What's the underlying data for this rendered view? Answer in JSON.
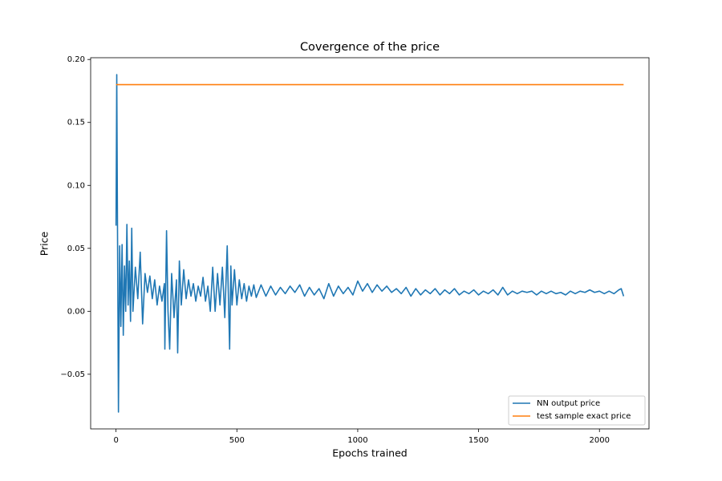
{
  "chart_data": {
    "type": "line",
    "title": "Covergence of the price",
    "xlabel": "Epochs trained",
    "ylabel": "Price",
    "xlim": [
      -105,
      2205
    ],
    "ylim": [
      -0.0934,
      0.2014
    ],
    "xticks": [
      0,
      500,
      1000,
      1500,
      2000
    ],
    "yticks": [
      {
        "value": -0.05,
        "label": "−0.05"
      },
      {
        "value": 0,
        "label": "0.00"
      },
      {
        "value": 0.05,
        "label": "0.05"
      },
      {
        "value": 0.1,
        "label": "0.10"
      },
      {
        "value": 0.15,
        "label": "0.15"
      },
      {
        "value": 0.2,
        "label": "0.20"
      }
    ],
    "legend": "lower right",
    "series": [
      {
        "name": "NN output price",
        "color": "#1f77b4",
        "x": [
          0,
          3,
          6,
          10,
          15,
          20,
          25,
          30,
          35,
          40,
          45,
          50,
          55,
          60,
          65,
          70,
          80,
          90,
          100,
          110,
          120,
          130,
          140,
          150,
          160,
          170,
          180,
          190,
          200,
          202,
          209,
          215,
          222,
          230,
          240,
          250,
          255,
          262,
          270,
          280,
          290,
          300,
          310,
          320,
          330,
          340,
          350,
          360,
          370,
          380,
          390,
          400,
          410,
          420,
          430,
          440,
          450,
          460,
          470,
          475,
          480,
          490,
          500,
          510,
          520,
          530,
          540,
          550,
          560,
          570,
          580,
          600,
          620,
          640,
          660,
          680,
          700,
          720,
          740,
          760,
          780,
          800,
          820,
          840,
          860,
          880,
          900,
          920,
          940,
          960,
          980,
          1000,
          1020,
          1040,
          1060,
          1080,
          1100,
          1120,
          1140,
          1160,
          1180,
          1200,
          1220,
          1240,
          1260,
          1280,
          1300,
          1320,
          1340,
          1360,
          1380,
          1400,
          1420,
          1440,
          1460,
          1480,
          1500,
          1520,
          1540,
          1560,
          1580,
          1600,
          1620,
          1640,
          1660,
          1680,
          1700,
          1720,
          1740,
          1760,
          1780,
          1800,
          1820,
          1840,
          1860,
          1880,
          1900,
          1920,
          1940,
          1960,
          1980,
          2000,
          2020,
          2040,
          2060,
          2080,
          2090,
          2100
        ],
        "values": [
          0.068,
          0.188,
          0.07,
          -0.08,
          0.052,
          -0.012,
          0.053,
          -0.019,
          0.036,
          0.0,
          0.069,
          0.005,
          0.04,
          -0.008,
          0.066,
          0.0,
          0.035,
          0.01,
          0.047,
          -0.01,
          0.03,
          0.015,
          0.028,
          0.01,
          0.025,
          0.005,
          0.02,
          0.008,
          0.022,
          -0.03,
          0.064,
          0.0,
          -0.03,
          0.03,
          -0.005,
          0.025,
          -0.033,
          0.04,
          0.005,
          0.033,
          0.01,
          0.025,
          0.012,
          0.022,
          0.008,
          0.02,
          0.012,
          0.027,
          0.008,
          0.02,
          0.0,
          0.035,
          0.0,
          0.03,
          0.005,
          0.035,
          -0.005,
          0.052,
          -0.03,
          0.036,
          0.005,
          0.033,
          0.005,
          0.025,
          0.01,
          0.022,
          0.008,
          0.02,
          0.012,
          0.021,
          0.011,
          0.021,
          0.012,
          0.02,
          0.013,
          0.019,
          0.014,
          0.02,
          0.015,
          0.021,
          0.012,
          0.019,
          0.013,
          0.018,
          0.01,
          0.022,
          0.012,
          0.02,
          0.014,
          0.019,
          0.013,
          0.024,
          0.016,
          0.022,
          0.015,
          0.021,
          0.016,
          0.02,
          0.015,
          0.018,
          0.014,
          0.019,
          0.012,
          0.018,
          0.013,
          0.017,
          0.014,
          0.018,
          0.013,
          0.017,
          0.014,
          0.018,
          0.013,
          0.016,
          0.014,
          0.017,
          0.013,
          0.016,
          0.014,
          0.017,
          0.013,
          0.019,
          0.013,
          0.016,
          0.014,
          0.016,
          0.015,
          0.016,
          0.013,
          0.016,
          0.014,
          0.016,
          0.014,
          0.015,
          0.013,
          0.016,
          0.014,
          0.016,
          0.015,
          0.017,
          0.015,
          0.016,
          0.014,
          0.016,
          0.014,
          0.017,
          0.018,
          0.012
        ]
      },
      {
        "name": "test sample exact price",
        "color": "#ff7f0e",
        "x": [
          0,
          2100
        ],
        "values": [
          0.18,
          0.18
        ]
      }
    ]
  }
}
